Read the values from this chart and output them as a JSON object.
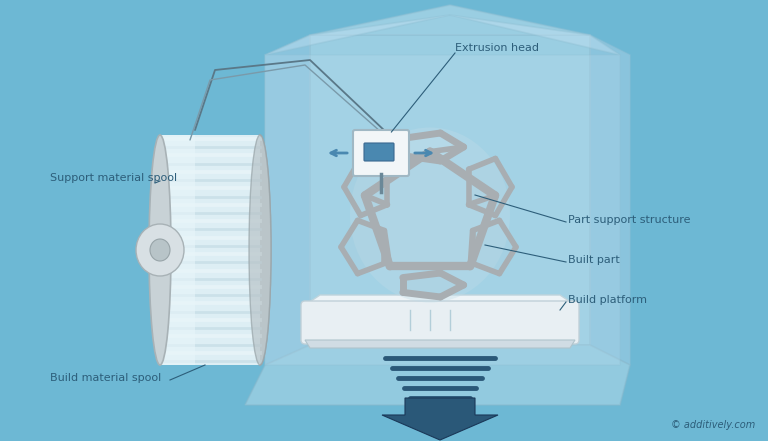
{
  "background_color": "#6db8d4",
  "figure_width": 7.68,
  "figure_height": 4.41,
  "dpi": 100,
  "labels": {
    "extrusion_head": "Extrusion head",
    "support_material_spool": "Support material spool",
    "part_support_structure": "Part support structure",
    "built_part": "Built part",
    "build_platform": "Build platform",
    "build_material_spool": "Build material spool",
    "copyright": "© additively.com"
  },
  "text_color": "#2d5e7a",
  "label_fontsize": 8.0
}
